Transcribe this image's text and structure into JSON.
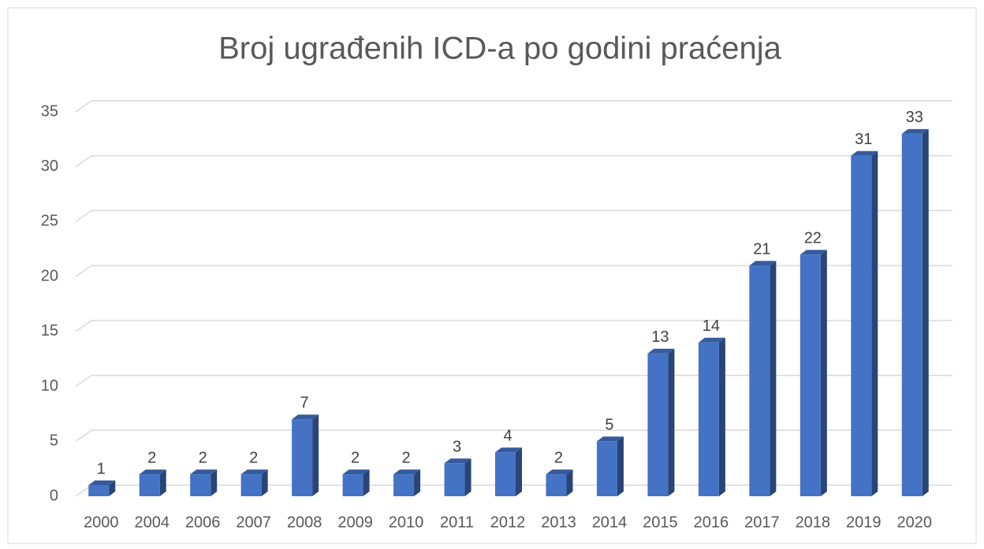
{
  "chart_data": {
    "type": "bar3d",
    "title": "Broj ugrađenih ICD-a po godini praćenja",
    "categories": [
      "2000",
      "2004",
      "2006",
      "2007",
      "2008",
      "2009",
      "2010",
      "2011",
      "2012",
      "2013",
      "2014",
      "2015",
      "2016",
      "2017",
      "2018",
      "2019",
      "2020"
    ],
    "values": [
      1,
      2,
      2,
      2,
      7,
      2,
      2,
      3,
      4,
      2,
      5,
      13,
      14,
      21,
      22,
      31,
      33
    ],
    "color": "#4472c4",
    "ylim": [
      0,
      35
    ],
    "yticks": [
      0,
      5,
      10,
      15,
      20,
      25,
      30,
      35
    ],
    "grid": true
  }
}
